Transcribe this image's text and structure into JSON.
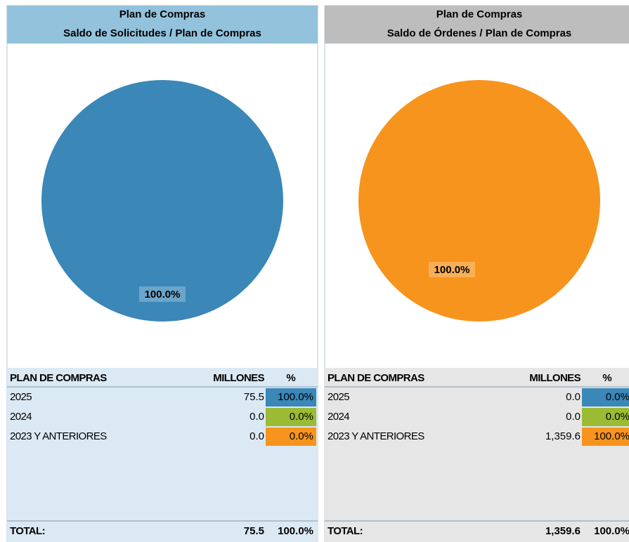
{
  "chart_data": [
    {
      "type": "pie",
      "title": "Plan de Compras",
      "subtitle": "Saldo de Solicitudes / Plan de Compras",
      "values": [
        100,
        0,
        0
      ],
      "value_labels": [
        "100.0%",
        null,
        null
      ],
      "colors": [
        "#3a87b8",
        "#9bbb34",
        "#f7941d"
      ]
    },
    {
      "type": "pie",
      "title": "Plan de Compras",
      "subtitle": "Saldo de Órdenes / Plan de Compras",
      "values": [
        0,
        0,
        100
      ],
      "value_labels": [
        null,
        null,
        "100.0%"
      ],
      "colors": [
        "#3a87b8",
        "#9bbb34",
        "#f7941d"
      ]
    }
  ],
  "tables": [
    {
      "header": [
        "PLAN DE COMPRAS",
        "MILLONES",
        "%"
      ],
      "rows": [
        [
          "2025",
          "75.5",
          "100.0%"
        ],
        [
          "2024",
          "0.0",
          "0.0%"
        ],
        [
          "2023 Y ANTERIORES",
          "0.0",
          "0.0%"
        ]
      ],
      "total": [
        "TOTAL:",
        "75.5",
        "100.0%"
      ]
    },
    {
      "header": [
        "PLAN DE COMPRAS",
        "MILLONES",
        "%"
      ],
      "rows": [
        [
          "2025",
          "0.0",
          "0.0%"
        ],
        [
          "2024",
          "0.0",
          "0.0%"
        ],
        [
          "2023 Y ANTERIORES",
          "1,359.6",
          "100.0%"
        ]
      ],
      "total": [
        "TOTAL:",
        "1,359.6",
        "100.0%"
      ]
    }
  ]
}
